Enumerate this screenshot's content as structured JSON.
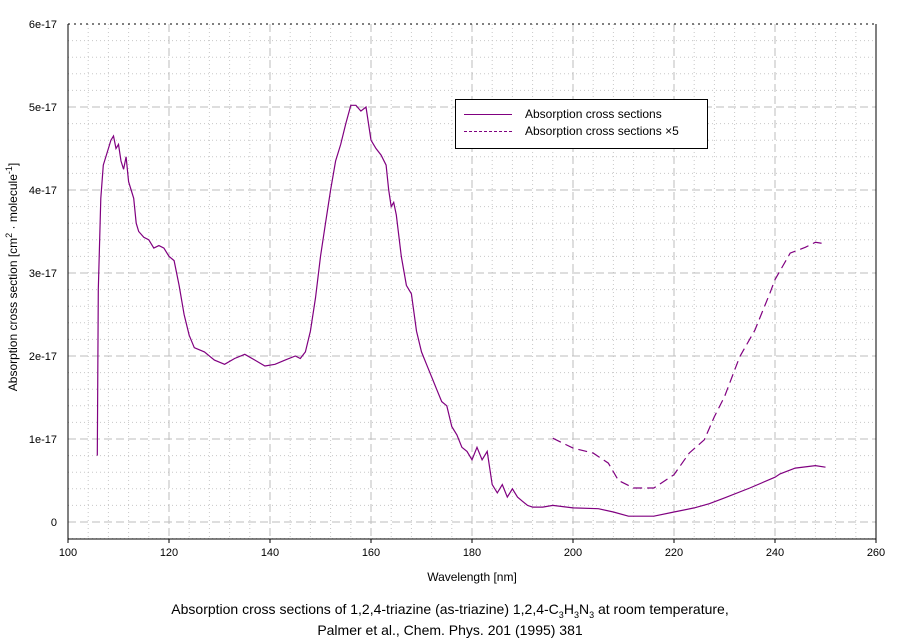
{
  "chart_data": {
    "type": "line",
    "title_line1": {
      "prefix": "Absorption cross sections of 1,2,4-triazine (as-triazine) 1,2,4-",
      "formula": [
        "C",
        "3",
        "H",
        "3",
        "N",
        "3"
      ],
      "suffix": " at room temperature,"
    },
    "title_line2": "Palmer et al., Chem. Phys. 201 (1995) 381",
    "xlabel": "Wavelength [nm]",
    "ylabel": {
      "main": "Absorption cross section [cm",
      "sup1": "2",
      "mid": " · molecule",
      "sup2": "-1",
      "end": "]"
    },
    "xlim": [
      100,
      260
    ],
    "ylim": [
      -2e-18,
      6e-17
    ],
    "xticks": [
      "100",
      "120",
      "140",
      "160",
      "180",
      "200",
      "220",
      "240",
      "260"
    ],
    "xtick_values": [
      100,
      120,
      140,
      160,
      180,
      200,
      220,
      240,
      260
    ],
    "yticks": [
      "0",
      "1e-17",
      "2e-17",
      "3e-17",
      "4e-17",
      "5e-17",
      "6e-17"
    ],
    "ytick_values": [
      0,
      1e-17,
      2e-17,
      3e-17,
      4e-17,
      5e-17,
      6e-17
    ],
    "grid": true,
    "legend_position": "top-right",
    "color": "#800080",
    "y_unit": 1e-17,
    "series": [
      {
        "name": "Absorption cross sections",
        "style": "solid",
        "x": [
          105.8,
          106,
          106.5,
          107,
          108,
          108.5,
          109,
          109.5,
          110,
          110.5,
          111,
          111.5,
          112,
          113,
          113.5,
          114,
          115,
          116,
          117,
          118,
          119,
          120,
          121,
          122,
          123,
          124,
          125,
          127,
          129,
          131,
          133,
          135,
          137,
          139,
          141,
          143,
          145,
          146,
          147,
          148,
          149,
          150,
          151,
          152,
          153,
          154,
          155,
          156,
          157,
          158,
          159,
          159.5,
          160,
          161,
          162,
          163,
          163.5,
          164,
          164.5,
          165,
          166,
          167,
          168,
          169,
          170,
          171,
          172,
          173,
          174,
          175,
          176,
          177,
          178,
          179,
          180,
          181,
          182,
          183,
          184,
          185,
          186,
          187,
          188,
          189,
          190,
          191,
          192,
          194,
          196,
          200,
          205,
          208,
          211,
          216,
          220,
          224,
          227,
          230,
          235,
          240,
          241,
          244,
          248,
          250
        ],
        "y": [
          0.8,
          2.8,
          3.9,
          4.3,
          4.5,
          4.6,
          4.65,
          4.5,
          4.55,
          4.35,
          4.25,
          4.4,
          4.1,
          3.9,
          3.6,
          3.5,
          3.43,
          3.4,
          3.3,
          3.33,
          3.3,
          3.2,
          3.15,
          2.85,
          2.5,
          2.25,
          2.1,
          2.05,
          1.95,
          1.9,
          1.97,
          2.02,
          1.95,
          1.88,
          1.9,
          1.95,
          2.0,
          1.97,
          2.05,
          2.3,
          2.7,
          3.2,
          3.6,
          4.0,
          4.35,
          4.55,
          4.8,
          5.02,
          5.02,
          4.95,
          5.0,
          4.8,
          4.6,
          4.5,
          4.42,
          4.3,
          4.0,
          3.8,
          3.85,
          3.7,
          3.2,
          2.85,
          2.75,
          2.3,
          2.05,
          1.9,
          1.75,
          1.6,
          1.45,
          1.4,
          1.15,
          1.05,
          0.9,
          0.85,
          0.75,
          0.9,
          0.75,
          0.85,
          0.45,
          0.35,
          0.45,
          0.3,
          0.4,
          0.3,
          0.25,
          0.2,
          0.18,
          0.18,
          0.2,
          0.17,
          0.16,
          0.12,
          0.07,
          0.07,
          0.12,
          0.17,
          0.22,
          0.29,
          0.41,
          0.54,
          0.58,
          0.65,
          0.68,
          0.66
        ]
      },
      {
        "name": "Absorption cross sections ×5",
        "style": "dashed",
        "x": [
          196,
          200,
          204,
          207,
          209,
          212,
          216,
          220,
          223,
          226,
          228,
          230,
          233,
          236,
          239,
          240,
          243,
          246,
          248,
          250
        ],
        "y": [
          1.01,
          0.89,
          0.83,
          0.71,
          0.5,
          0.41,
          0.41,
          0.57,
          0.83,
          0.99,
          1.27,
          1.51,
          1.99,
          2.31,
          2.76,
          2.92,
          3.24,
          3.31,
          3.37,
          3.35
        ]
      }
    ]
  }
}
